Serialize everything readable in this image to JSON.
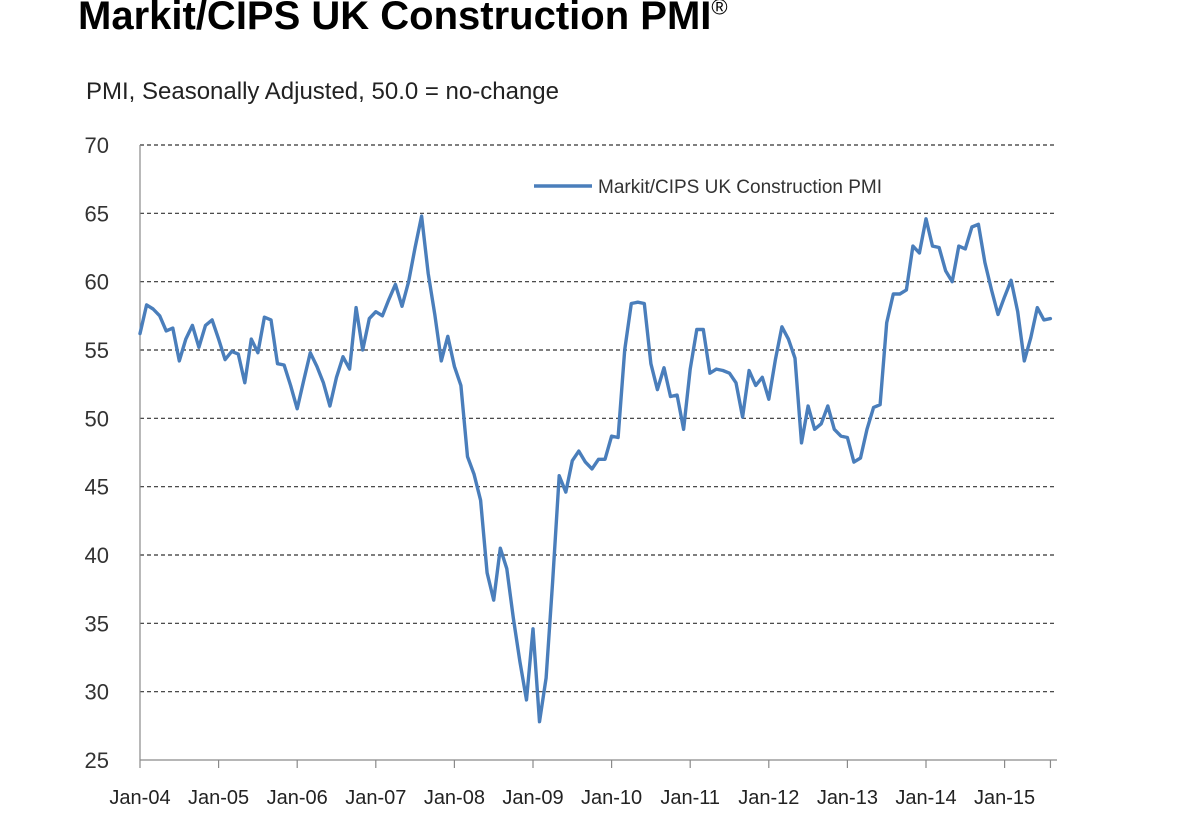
{
  "title": "Markit/CIPS UK Construction PMI",
  "title_mark": "®",
  "subtitle": "PMI, Seasonally Adjusted, 50.0 = no-change",
  "chart_data": {
    "type": "line",
    "title": "Markit/CIPS UK Construction PMI",
    "subtitle": "PMI, Seasonally Adjusted, 50.0 = no-change",
    "xlabel": "",
    "ylabel": "",
    "ylim": [
      25,
      70
    ],
    "y_ticks": [
      25,
      30,
      35,
      40,
      45,
      50,
      55,
      60,
      65,
      70
    ],
    "x_ticks": [
      "Jan-04",
      "Jan-05",
      "Jan-06",
      "Jan-07",
      "Jan-08",
      "Jan-09",
      "Jan-10",
      "Jan-11",
      "Jan-12",
      "Jan-13",
      "Jan-14",
      "Jan-15"
    ],
    "grid": "horizontal dashed",
    "legend": "top-right",
    "series_color": "#4a7ebb",
    "series": [
      {
        "name": "Markit/CIPS UK Construction PMI",
        "start": "Jan-04",
        "frequency": "monthly",
        "values": [
          56.2,
          58.3,
          58.0,
          57.5,
          56.4,
          56.6,
          54.2,
          55.8,
          56.8,
          55.2,
          56.8,
          57.2,
          55.8,
          54.3,
          54.9,
          54.7,
          52.6,
          55.8,
          54.8,
          57.4,
          57.2,
          54.0,
          53.9,
          52.4,
          50.7,
          52.8,
          54.8,
          53.8,
          52.6,
          50.9,
          53.0,
          54.5,
          53.6,
          58.1,
          55.0,
          57.3,
          57.8,
          57.5,
          58.7,
          59.8,
          58.2,
          60.0,
          62.5,
          64.8,
          60.6,
          57.6,
          54.2,
          56.0,
          53.8,
          52.4,
          47.2,
          45.9,
          44.0,
          38.7,
          36.7,
          40.5,
          39.0,
          35.4,
          32.2,
          29.4,
          34.6,
          27.8,
          31.0,
          38.0,
          45.8,
          44.6,
          46.9,
          47.6,
          46.8,
          46.3,
          47.0,
          47.0,
          48.7,
          48.6,
          55.0,
          58.4,
          58.5,
          58.4,
          54.0,
          52.1,
          53.7,
          51.6,
          51.7,
          49.2,
          53.6,
          56.5,
          56.5,
          53.3,
          53.6,
          53.5,
          53.3,
          52.6,
          50.1,
          53.5,
          52.4,
          53.0,
          51.4,
          54.3,
          56.7,
          55.8,
          54.4,
          48.2,
          50.9,
          49.2,
          49.6,
          50.9,
          49.2,
          48.7,
          48.6,
          46.8,
          47.1,
          49.2,
          50.8,
          51.0,
          57.0,
          59.1,
          59.1,
          59.4,
          62.6,
          62.1,
          64.6,
          62.6,
          62.5,
          60.8,
          60.0,
          62.6,
          62.4,
          64.0,
          64.2,
          61.4,
          59.4,
          57.6,
          58.9,
          60.1,
          57.8,
          54.2,
          55.9,
          58.1,
          57.2,
          57.3
        ]
      }
    ]
  }
}
